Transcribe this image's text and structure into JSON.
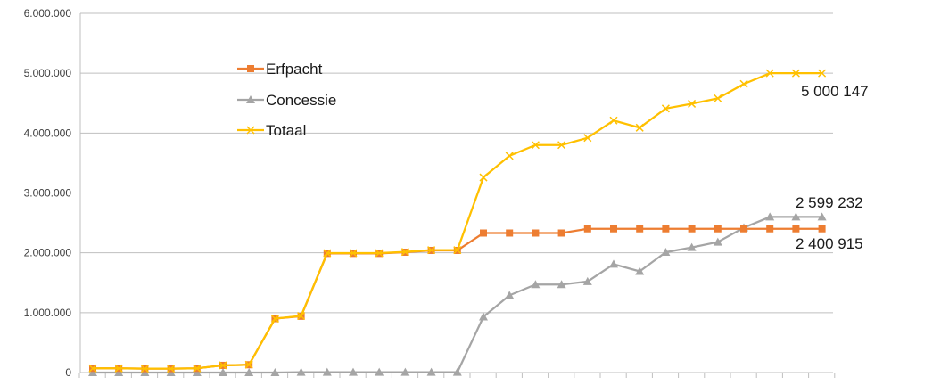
{
  "chart_data": {
    "type": "line",
    "ylim": [
      0,
      6000000
    ],
    "yticks": [
      "0",
      "1.000.000",
      "2.000.000",
      "3.000.000",
      "4.000.000",
      "5.000.000",
      "6.000.000"
    ],
    "ytick_values": [
      0,
      1000000,
      2000000,
      3000000,
      4000000,
      5000000,
      6000000
    ],
    "grid": true,
    "legend_position": "upper-left",
    "point_count": 29,
    "series": [
      {
        "name": "Erfpacht",
        "color": "#ED7D31",
        "marker": "square",
        "values": [
          70000,
          70000,
          65000,
          65000,
          70000,
          120000,
          130000,
          900000,
          940000,
          1990000,
          1990000,
          1990000,
          2010000,
          2040000,
          2040000,
          2330000,
          2330000,
          2330000,
          2330000,
          2400915,
          2400915,
          2400915,
          2400915,
          2400915,
          2400915,
          2400915,
          2400915,
          2400915,
          2400915
        ]
      },
      {
        "name": "Concessie",
        "color": "#A5A5A5",
        "marker": "triangle",
        "values": [
          0,
          0,
          0,
          0,
          0,
          0,
          0,
          0,
          5000,
          5000,
          5000,
          5000,
          5000,
          5000,
          5000,
          930000,
          1290000,
          1470000,
          1470000,
          1520000,
          1810000,
          1690000,
          2010000,
          2090000,
          2180000,
          2420000,
          2599232,
          2599232,
          2599232
        ]
      },
      {
        "name": "Totaal",
        "color": "#FFC000",
        "marker": "x",
        "values": [
          70000,
          70000,
          65000,
          65000,
          70000,
          120000,
          130000,
          900000,
          945000,
          1995000,
          1995000,
          1995000,
          2015000,
          2045000,
          2045000,
          3260000,
          3620000,
          3800000,
          3800000,
          3920000,
          4210000,
          4090000,
          4410000,
          4490000,
          4580000,
          4820000,
          5000147,
          5000147,
          5000147
        ]
      }
    ],
    "annotations": [
      {
        "text": "5 000 147",
        "series": "Totaal"
      },
      {
        "text": "2 599 232",
        "series": "Concessie"
      },
      {
        "text": "2 400 915",
        "series": "Erfpacht"
      }
    ]
  }
}
